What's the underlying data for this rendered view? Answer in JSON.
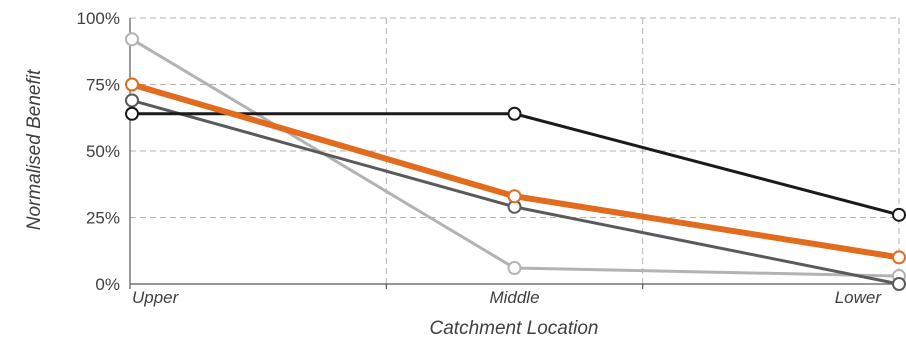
{
  "chart_data": {
    "type": "line",
    "xlabel": "Catchment Location",
    "ylabel": "Normalised Benefit",
    "categories": [
      "Upper",
      "Middle",
      "Lower"
    ],
    "yticks": [
      "0%",
      "25%",
      "50%",
      "75%",
      "100%"
    ],
    "ylim": [
      0,
      100
    ],
    "grid": true,
    "legend": "none",
    "series": [
      {
        "color": "#b3b3b3",
        "values": [
          92,
          6,
          3
        ],
        "line_width": 3
      },
      {
        "color": "#5a5a5a",
        "values": [
          69,
          29,
          0
        ],
        "line_width": 3
      },
      {
        "color": "#1a1a1a",
        "values": [
          64,
          64,
          26
        ],
        "line_width": 3
      },
      {
        "color": "#e26b1e",
        "values": [
          75,
          33,
          10
        ],
        "line_width": 6
      }
    ]
  }
}
